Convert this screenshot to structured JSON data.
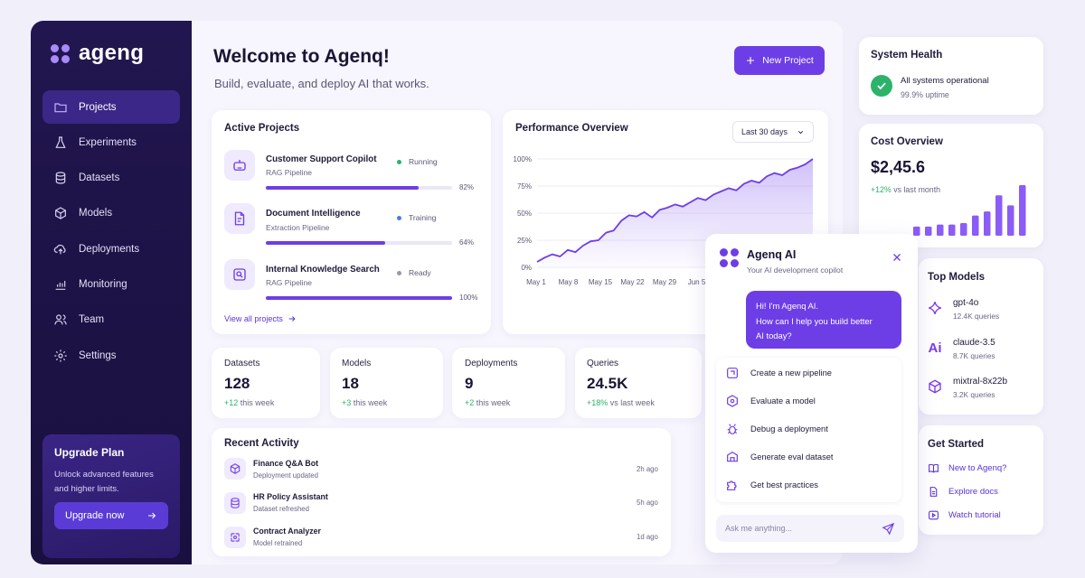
{
  "app": {
    "name": "ageng"
  },
  "sidebar": {
    "items": [
      {
        "label": "Projects",
        "icon": "folder-icon",
        "active": true
      },
      {
        "label": "Experiments",
        "icon": "flask-icon"
      },
      {
        "label": "Datasets",
        "icon": "database-icon"
      },
      {
        "label": "Models",
        "icon": "cube-icon"
      },
      {
        "label": "Deployments",
        "icon": "cloud-upload-icon"
      },
      {
        "label": "Monitoring",
        "icon": "chart-icon"
      },
      {
        "label": "Team",
        "icon": "users-icon"
      },
      {
        "label": "Settings",
        "icon": "gear-icon"
      }
    ],
    "upgrade": {
      "title": "Upgrade Plan",
      "desc_line1": "Unlock advanced features",
      "desc_line2": "and higher limits.",
      "button": "Upgrade now"
    }
  },
  "header": {
    "title": "Welcome to Agenq!",
    "subtitle": "Build, evaluate, and deploy AI that works.",
    "new_project": "New Project"
  },
  "active_projects": {
    "title": "Active Projects",
    "items": [
      {
        "name": "Customer Support Copilot",
        "type": "RAG Pipeline",
        "status": "Running",
        "status_color": "#2bb36a",
        "progress": 82,
        "progress_label": "82%"
      },
      {
        "name": "Document Intelligence",
        "type": "Extraction Pipeline",
        "status": "Training",
        "status_color": "#4f7be8",
        "progress": 64,
        "progress_label": "64%"
      },
      {
        "name": "Internal Knowledge Search",
        "type": "RAG Pipeline",
        "status": "Ready",
        "status_color": "#9b96ad",
        "progress": 100,
        "progress_label": "100%"
      }
    ],
    "view_all": "View all projects"
  },
  "performance": {
    "title": "Performance Overview",
    "range": "Last 30 days"
  },
  "chart_data": {
    "type": "area",
    "title": "Performance Overview",
    "x_ticks": [
      "May 1",
      "May 8",
      "May 15",
      "May 22",
      "May 29",
      "Jun 5"
    ],
    "y_ticks": [
      "100%",
      "75%",
      "50%",
      "25%",
      "0%"
    ],
    "ylim": [
      0,
      100
    ],
    "x_range": [
      1,
      37
    ],
    "series": [
      {
        "x": [
          1,
          2,
          3,
          4,
          5,
          6,
          7,
          8,
          9,
          10,
          11,
          12,
          13,
          14,
          15,
          16,
          17,
          18,
          19,
          20,
          21,
          22,
          23,
          24,
          25,
          26,
          27,
          28,
          29,
          30,
          31,
          32,
          33,
          34,
          35,
          36,
          37
        ],
        "values": [
          5,
          9,
          12,
          10,
          16,
          14,
          20,
          24,
          25,
          32,
          34,
          43,
          48,
          47,
          51,
          46,
          53,
          55,
          58,
          56,
          60,
          64,
          62,
          67,
          70,
          73,
          71,
          77,
          80,
          78,
          84,
          87,
          85,
          90,
          92,
          95,
          100
        ]
      }
    ]
  },
  "stats": [
    {
      "label": "Datasets",
      "value": "128",
      "delta": "+12",
      "delta_suffix": "this week"
    },
    {
      "label": "Models",
      "value": "18",
      "delta": "+3",
      "delta_suffix": "this week"
    },
    {
      "label": "Deployments",
      "value": "9",
      "delta": "+2",
      "delta_suffix": "this week"
    },
    {
      "label": "Queries",
      "value": "24.5K",
      "delta": "+18%",
      "delta_suffix": "vs last week"
    }
  ],
  "activity": {
    "title": "Recent Activity",
    "items": [
      {
        "name": "Finance Q&A Bot",
        "sub": "Deployment updated",
        "time": "2h ago"
      },
      {
        "name": "HR Policy Assistant",
        "sub": "Dataset refreshed",
        "time": "5h ago"
      },
      {
        "name": "Contract Analyzer",
        "sub": "Model retrained",
        "time": "1d ago"
      }
    ]
  },
  "system_health": {
    "title": "System Health",
    "status": "All systems operational",
    "uptime": "99.9% uptime"
  },
  "cost": {
    "title": "Cost Overview",
    "value": "$2,45.6",
    "delta": "+12%",
    "delta_suffix": "vs last month",
    "bars": [
      18,
      18,
      22,
      22,
      25,
      40,
      48,
      80,
      60,
      100
    ]
  },
  "top_models": {
    "title": "Top Models",
    "items": [
      {
        "name": "gpt-4o",
        "queries": "12.4K queries"
      },
      {
        "name": "claude-3.5",
        "queries": "8.7K queries"
      },
      {
        "name": "mixtral-8x22b",
        "queries": "3.2K queries"
      }
    ]
  },
  "get_started": {
    "title": "Get Started",
    "items": [
      "New to Agenq?",
      "Explore docs",
      "Watch tutorial"
    ]
  },
  "chat": {
    "title": "Agenq AI",
    "subtitle": "Your AI development copilot",
    "bubble_line1": "Hi! I'm Agenq AI.",
    "bubble_line2": "How can I help you build better",
    "bubble_line3": "AI today?",
    "options": [
      "Create a new pipeline",
      "Evaluate a model",
      "Debug a deployment",
      "Generate eval dataset",
      "Get best practices"
    ],
    "placeholder": "Ask me anything..."
  },
  "colors": {
    "accent": "#6d3ee6",
    "sidebar": "#1f1448",
    "success": "#2bb36a"
  }
}
